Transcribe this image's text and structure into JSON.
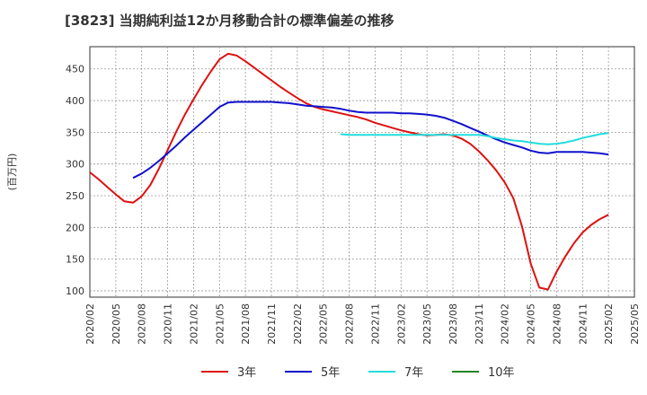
{
  "chart_data": {
    "type": "line",
    "title": "[3823]  当期純利益12か月移動合計の標準偏差の推移",
    "ylabel": "(百万円)",
    "xlabel": "",
    "ylim": [
      90,
      485
    ],
    "yticks": [
      100,
      150,
      200,
      250,
      300,
      350,
      400,
      450
    ],
    "x_ticks": [
      "2020/02",
      "2020/05",
      "2020/08",
      "2020/11",
      "2021/02",
      "2021/05",
      "2021/08",
      "2021/11",
      "2022/02",
      "2022/05",
      "2022/08",
      "2022/11",
      "2023/02",
      "2023/05",
      "2023/08",
      "2023/11",
      "2024/02",
      "2024/05",
      "2024/08",
      "2024/11",
      "2025/02",
      "2025/05"
    ],
    "grid": true,
    "legend_position": "bottom",
    "series": [
      {
        "name": "3年",
        "color": "#dd1111",
        "points": [
          [
            "2020/02",
            287
          ],
          [
            "2020/03",
            276
          ],
          [
            "2020/04",
            264
          ],
          [
            "2020/05",
            252
          ],
          [
            "2020/06",
            241
          ],
          [
            "2020/07",
            239
          ],
          [
            "2020/08",
            249
          ],
          [
            "2020/09",
            267
          ],
          [
            "2020/10",
            293
          ],
          [
            "2020/11",
            322
          ],
          [
            "2020/12",
            351
          ],
          [
            "2021/01",
            378
          ],
          [
            "2021/02",
            402
          ],
          [
            "2021/03",
            425
          ],
          [
            "2021/04",
            446
          ],
          [
            "2021/05",
            465
          ],
          [
            "2021/06",
            474
          ],
          [
            "2021/07",
            471
          ],
          [
            "2021/08",
            462
          ],
          [
            "2021/09",
            452
          ],
          [
            "2021/10",
            442
          ],
          [
            "2021/11",
            432
          ],
          [
            "2021/12",
            422
          ],
          [
            "2022/01",
            413
          ],
          [
            "2022/02",
            404
          ],
          [
            "2022/03",
            396
          ],
          [
            "2022/04",
            390
          ],
          [
            "2022/05",
            386
          ],
          [
            "2022/06",
            383
          ],
          [
            "2022/07",
            380
          ],
          [
            "2022/08",
            377
          ],
          [
            "2022/09",
            374
          ],
          [
            "2022/10",
            370
          ],
          [
            "2022/11",
            365
          ],
          [
            "2022/12",
            361
          ],
          [
            "2023/01",
            357
          ],
          [
            "2023/02",
            353
          ],
          [
            "2023/03",
            350
          ],
          [
            "2023/04",
            347
          ],
          [
            "2023/05",
            345
          ],
          [
            "2023/06",
            346
          ],
          [
            "2023/07",
            347
          ],
          [
            "2023/08",
            345
          ],
          [
            "2023/09",
            340
          ],
          [
            "2023/10",
            332
          ],
          [
            "2023/11",
            320
          ],
          [
            "2023/12",
            306
          ],
          [
            "2024/01",
            290
          ],
          [
            "2024/02",
            271
          ],
          [
            "2024/03",
            246
          ],
          [
            "2024/04",
            201
          ],
          [
            "2024/05",
            143
          ],
          [
            "2024/06",
            105
          ],
          [
            "2024/07",
            102
          ],
          [
            "2024/08",
            130
          ],
          [
            "2024/09",
            154
          ],
          [
            "2024/10",
            175
          ],
          [
            "2024/11",
            192
          ],
          [
            "2024/12",
            204
          ],
          [
            "2025/01",
            213
          ],
          [
            "2025/02",
            220
          ]
        ]
      },
      {
        "name": "5年",
        "color": "#1111cc",
        "points": [
          [
            "2020/07",
            278
          ],
          [
            "2020/08",
            285
          ],
          [
            "2020/09",
            294
          ],
          [
            "2020/10",
            305
          ],
          [
            "2020/11",
            317
          ],
          [
            "2020/12",
            329
          ],
          [
            "2021/01",
            342
          ],
          [
            "2021/02",
            354
          ],
          [
            "2021/03",
            366
          ],
          [
            "2021/04",
            378
          ],
          [
            "2021/05",
            390
          ],
          [
            "2021/06",
            397
          ],
          [
            "2021/07",
            398
          ],
          [
            "2021/08",
            398
          ],
          [
            "2021/09",
            398
          ],
          [
            "2021/10",
            398
          ],
          [
            "2021/11",
            398
          ],
          [
            "2021/12",
            397
          ],
          [
            "2022/01",
            396
          ],
          [
            "2022/02",
            394
          ],
          [
            "2022/03",
            392
          ],
          [
            "2022/04",
            391
          ],
          [
            "2022/05",
            390
          ],
          [
            "2022/06",
            389
          ],
          [
            "2022/07",
            387
          ],
          [
            "2022/08",
            384
          ],
          [
            "2022/09",
            382
          ],
          [
            "2022/10",
            381
          ],
          [
            "2022/11",
            381
          ],
          [
            "2022/12",
            381
          ],
          [
            "2023/01",
            381
          ],
          [
            "2023/02",
            380
          ],
          [
            "2023/03",
            380
          ],
          [
            "2023/04",
            379
          ],
          [
            "2023/05",
            378
          ],
          [
            "2023/06",
            376
          ],
          [
            "2023/07",
            373
          ],
          [
            "2023/08",
            368
          ],
          [
            "2023/09",
            363
          ],
          [
            "2023/10",
            357
          ],
          [
            "2023/11",
            351
          ],
          [
            "2023/12",
            345
          ],
          [
            "2024/01",
            339
          ],
          [
            "2024/02",
            334
          ],
          [
            "2024/03",
            330
          ],
          [
            "2024/04",
            326
          ],
          [
            "2024/05",
            321
          ],
          [
            "2024/06",
            318
          ],
          [
            "2024/07",
            317
          ],
          [
            "2024/08",
            319
          ],
          [
            "2024/09",
            319
          ],
          [
            "2024/10",
            319
          ],
          [
            "2024/11",
            319
          ],
          [
            "2024/12",
            318
          ],
          [
            "2025/01",
            317
          ],
          [
            "2025/02",
            315
          ]
        ]
      },
      {
        "name": "7年",
        "color": "#22dddd",
        "points": [
          [
            "2022/07",
            347
          ],
          [
            "2022/08",
            346
          ],
          [
            "2022/09",
            346
          ],
          [
            "2022/10",
            346
          ],
          [
            "2022/11",
            346
          ],
          [
            "2022/12",
            346
          ],
          [
            "2023/01",
            346
          ],
          [
            "2023/02",
            346
          ],
          [
            "2023/03",
            346
          ],
          [
            "2023/04",
            346
          ],
          [
            "2023/05",
            346
          ],
          [
            "2023/06",
            346
          ],
          [
            "2023/07",
            346
          ],
          [
            "2023/08",
            346
          ],
          [
            "2023/09",
            346
          ],
          [
            "2023/10",
            346
          ],
          [
            "2023/11",
            346
          ],
          [
            "2023/12",
            344
          ],
          [
            "2024/01",
            341
          ],
          [
            "2024/02",
            339
          ],
          [
            "2024/03",
            337
          ],
          [
            "2024/04",
            336
          ],
          [
            "2024/05",
            334
          ],
          [
            "2024/06",
            332
          ],
          [
            "2024/07",
            331
          ],
          [
            "2024/08",
            332
          ],
          [
            "2024/09",
            334
          ],
          [
            "2024/10",
            337
          ],
          [
            "2024/11",
            341
          ],
          [
            "2024/12",
            344
          ],
          [
            "2025/01",
            347
          ],
          [
            "2025/02",
            349
          ]
        ]
      },
      {
        "name": "10年",
        "color": "#228822",
        "points": []
      }
    ]
  }
}
